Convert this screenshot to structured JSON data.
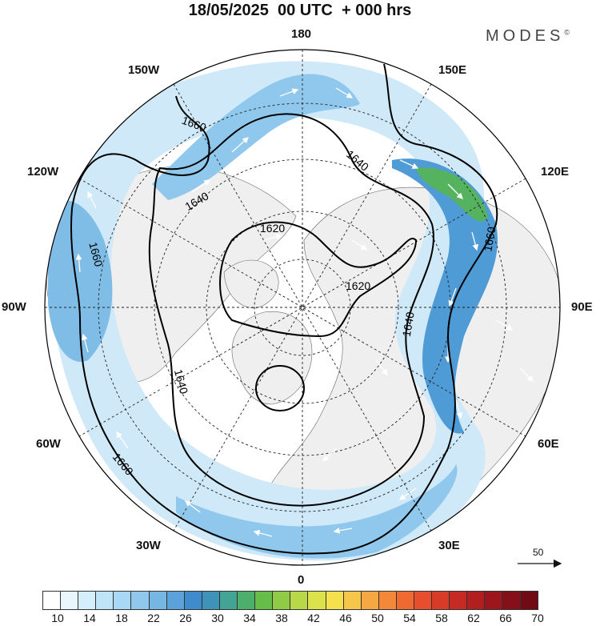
{
  "title": "18/05/2025  00 UTC  + 000 hrs",
  "brand": "MODES",
  "brand_mark": "©",
  "longitude_labels": {
    "top": "180",
    "bottom": "0",
    "left": "90W",
    "right": "90E",
    "ul1": "150W",
    "ur1": "150E",
    "ul2": "120W",
    "ur2": "120E",
    "ll2": "60W",
    "lr2": "60E",
    "ll1": "30W",
    "lr1": "30E"
  },
  "contour_labels": [
    "1620",
    "1620",
    "1640",
    "1640",
    "1640",
    "1640",
    "1660",
    "1660",
    "1660",
    "1660"
  ],
  "reference_vector": {
    "label": "50"
  },
  "colorbar": {
    "colors": [
      "#ffffff",
      "#eaf6fd",
      "#d4eefb",
      "#bfe4f8",
      "#a8d8f3",
      "#8fc8ec",
      "#76b6e3",
      "#5aa2d9",
      "#3f8ccd",
      "#3f92b8",
      "#43a394",
      "#4cb06c",
      "#66bd4a",
      "#8fcb47",
      "#b8d84a",
      "#dce24b",
      "#f5e04e",
      "#f6c64a",
      "#f5a743",
      "#f3883b",
      "#ef6a33",
      "#e64e2d",
      "#d83b28",
      "#c62a24",
      "#b11f21",
      "#9b161d",
      "#861019",
      "#700a15"
    ],
    "labels": [
      "10",
      "14",
      "18",
      "22",
      "26",
      "30",
      "34",
      "38",
      "42",
      "46",
      "50",
      "54",
      "58",
      "62",
      "66",
      "70"
    ]
  },
  "colors": {
    "land": "#efefef",
    "ocean": "#ffffff",
    "contour": "#000000",
    "wind_arrow": "#ffffff"
  }
}
